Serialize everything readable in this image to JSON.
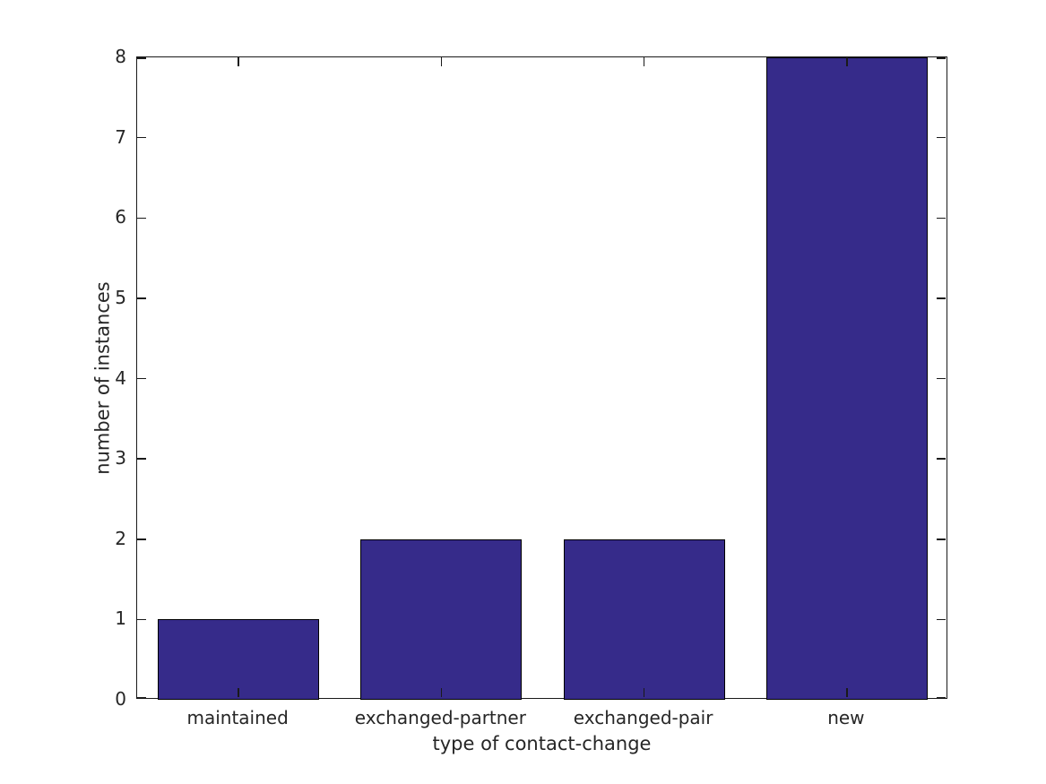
{
  "chart_data": {
    "type": "bar",
    "title": "",
    "categories": [
      "maintained",
      "exchanged-partner",
      "exchanged-pair",
      "new"
    ],
    "values": [
      1,
      2,
      2,
      8
    ],
    "xlabel": "type of contact-change",
    "ylabel": "number of instances",
    "ylim": [
      0,
      8
    ],
    "yticks": [
      0,
      1,
      2,
      3,
      4,
      5,
      6,
      7,
      8
    ],
    "grid": false,
    "legend_position": "none",
    "tick_style": "inward-all-four-spines",
    "colors": {
      "bar_fill": "#362b8a",
      "bar_edge": "#000000",
      "axis": "#1a1a1a",
      "text": "#262626",
      "background": "#ffffff"
    }
  }
}
